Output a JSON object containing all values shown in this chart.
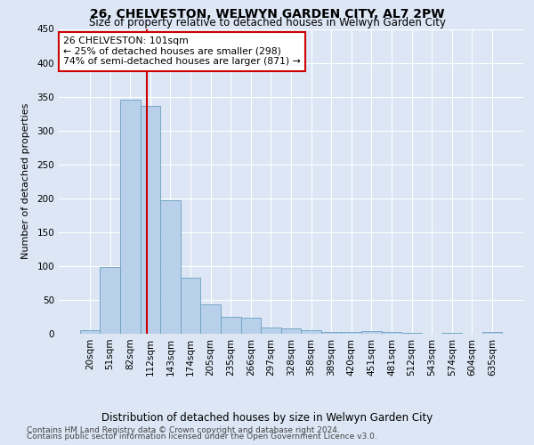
{
  "title": "26, CHELVESTON, WELWYN GARDEN CITY, AL7 2PW",
  "subtitle": "Size of property relative to detached houses in Welwyn Garden City",
  "xlabel": "Distribution of detached houses by size in Welwyn Garden City",
  "ylabel": "Number of detached properties",
  "footnote1": "Contains HM Land Registry data © Crown copyright and database right 2024.",
  "footnote2": "Contains public sector information licensed under the Open Government Licence v3.0.",
  "bar_labels": [
    "20sqm",
    "51sqm",
    "82sqm",
    "112sqm",
    "143sqm",
    "174sqm",
    "205sqm",
    "235sqm",
    "266sqm",
    "297sqm",
    "328sqm",
    "358sqm",
    "389sqm",
    "420sqm",
    "451sqm",
    "481sqm",
    "512sqm",
    "543sqm",
    "574sqm",
    "604sqm",
    "635sqm"
  ],
  "bar_values": [
    5,
    99,
    345,
    337,
    197,
    83,
    43,
    25,
    23,
    9,
    8,
    5,
    3,
    2,
    4,
    2,
    1,
    0,
    1,
    0,
    2
  ],
  "bar_color": "#b8d0ea",
  "bar_edge_color": "#6a9fc0",
  "background_color": "#dce6f5",
  "grid_color": "#ffffff",
  "vline_x": 2.85,
  "vline_color": "#cc0000",
  "annotation_text": "26 CHELVESTON: 101sqm\n← 25% of detached houses are smaller (298)\n74% of semi-detached houses are larger (871) →",
  "annotation_box_facecolor": "#ffffff",
  "annotation_box_edgecolor": "#cc0000",
  "ylim": [
    0,
    450
  ],
  "yticks": [
    0,
    50,
    100,
    150,
    200,
    250,
    300,
    350,
    400,
    450
  ],
  "title_fontsize": 10,
  "subtitle_fontsize": 8.5,
  "ylabel_fontsize": 8,
  "xlabel_fontsize": 8.5,
  "tick_fontsize": 7.5,
  "annotation_fontsize": 7.8,
  "footnote_fontsize": 6.5
}
